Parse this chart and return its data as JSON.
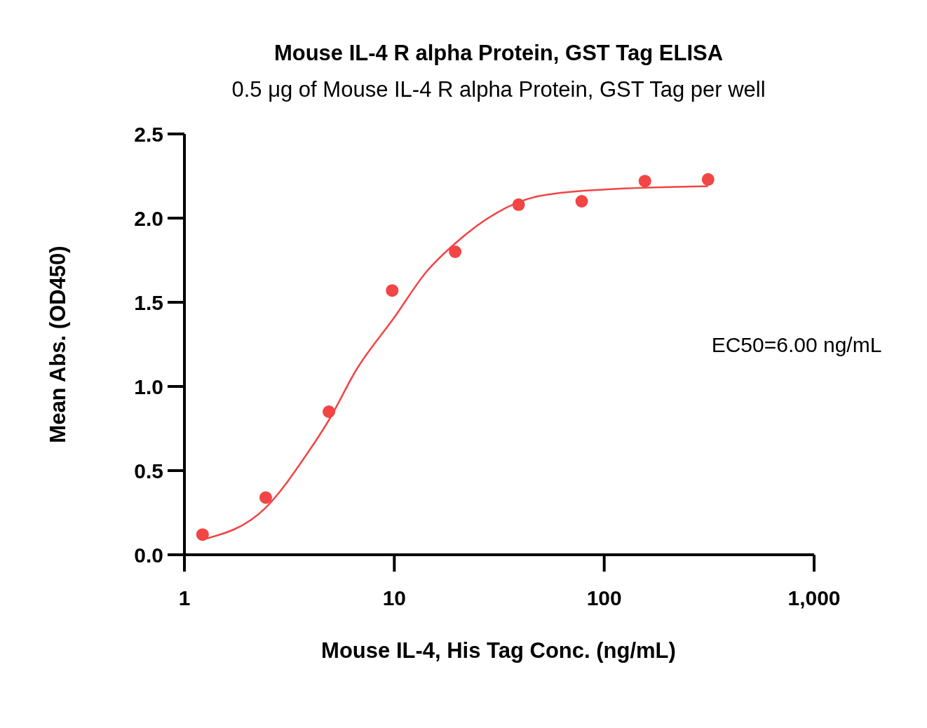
{
  "chart_data": {
    "type": "scatter",
    "title": "Mouse IL-4 R alpha Protein, GST Tag ELISA",
    "subtitle": "0.5 μg of Mouse IL-4 R alpha Protein, GST Tag per well",
    "xlabel": "Mouse IL-4, His Tag Conc. (ng/mL)",
    "ylabel": "Mean Abs. (OD450)",
    "log": "x",
    "xlim": [
      1,
      1000
    ],
    "xticks": [
      1,
      10,
      100,
      {
        "value": 1000,
        "label": "1,000"
      }
    ],
    "ylim": [
      0,
      2.5
    ],
    "yticks": [
      {
        "value": 0,
        "label": "0.0"
      },
      {
        "value": 0.5,
        "label": "0.5"
      },
      {
        "value": 1,
        "label": "1.0"
      },
      {
        "value": 1.5,
        "label": "1.5"
      },
      {
        "value": 2,
        "label": "2.0"
      },
      {
        "value": 2.5,
        "label": "2.5"
      }
    ],
    "grid": false,
    "annotations": [
      "EC50=6.00 ng/mL"
    ],
    "series": [
      {
        "color": "#f24545",
        "marker": "circle",
        "x": [
          1.22,
          2.44,
          4.88,
          9.77,
          19.5,
          39.1,
          78.1,
          156.3,
          312.5
        ],
        "values": [
          0.12,
          0.34,
          0.85,
          1.57,
          1.8,
          2.08,
          2.1,
          2.22,
          2.23
        ]
      },
      {
        "type": "line",
        "color": "#f24545",
        "marker": "none",
        "line_style": "solid",
        "x": [
          1.22,
          2.44,
          3.84,
          4.88,
          6.6,
          10,
          14.2,
          19.5,
          30.6,
          48.5,
          100,
          312.5
        ],
        "values": [
          0.09,
          0.28,
          0.6,
          0.8,
          1.1,
          1.41,
          1.68,
          1.85,
          2.03,
          2.13,
          2.17,
          2.19
        ]
      }
    ]
  }
}
